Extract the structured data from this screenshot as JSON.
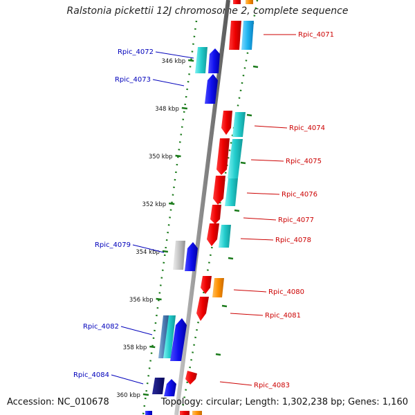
{
  "title": "Ralstonia pickettii 12J chromosome 2, complete sequence",
  "footer": {
    "accession": "Accession: NC_010678",
    "summary": "Topology: circular; Length: 1,302,238 bp; Genes: 1,160"
  },
  "colors": {
    "forward_label": "#0000bb",
    "reverse_label": "#cc0000",
    "backbone": "#888888",
    "tick": "#1a7a1a"
  },
  "kbp_ticks": [
    {
      "label": "346 kbp",
      "kbp": 346
    },
    {
      "label": "348 kbp",
      "kbp": 348
    },
    {
      "label": "350 kbp",
      "kbp": 350
    },
    {
      "label": "352 kbp",
      "kbp": 352
    },
    {
      "label": "354 kbp",
      "kbp": 354
    },
    {
      "label": "356 kbp",
      "kbp": 356
    },
    {
      "label": "358 kbp",
      "kbp": 358
    },
    {
      "label": "360 kbp",
      "kbp": 360
    }
  ],
  "gene_labels": [
    {
      "name": "Rpic_4071",
      "side": "right"
    },
    {
      "name": "Rpic_4072",
      "side": "left"
    },
    {
      "name": "Rpic_4073",
      "side": "left"
    },
    {
      "name": "Rpic_4074",
      "side": "right"
    },
    {
      "name": "Rpic_4075",
      "side": "right"
    },
    {
      "name": "Rpic_4076",
      "side": "right"
    },
    {
      "name": "Rpic_4077",
      "side": "right"
    },
    {
      "name": "Rpic_4078",
      "side": "right"
    },
    {
      "name": "Rpic_4079",
      "side": "left"
    },
    {
      "name": "Rpic_4080",
      "side": "right"
    },
    {
      "name": "Rpic_4081",
      "side": "right"
    },
    {
      "name": "Rpic_4082",
      "side": "left"
    },
    {
      "name": "Rpic_4083",
      "side": "right"
    },
    {
      "name": "Rpic_4084",
      "side": "left"
    }
  ]
}
